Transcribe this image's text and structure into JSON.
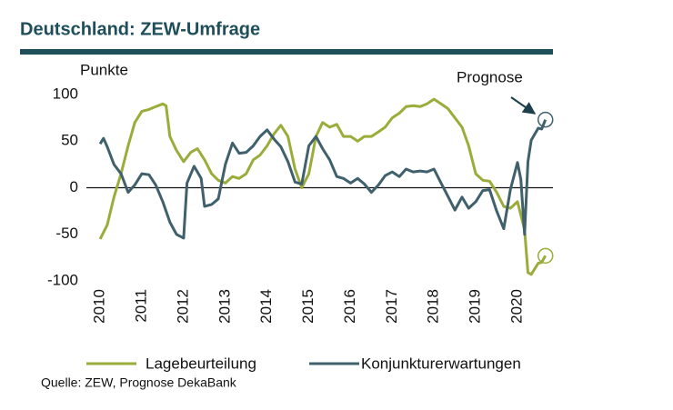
{
  "chart_data": {
    "type": "line",
    "title": "Deutschland: ZEW-Umfrage",
    "y_label": "Punkte",
    "annotation": "Prognose",
    "source": "Quelle: ZEW, Prognose DekaBank",
    "xlim": [
      2009.67,
      2020.85
    ],
    "xticks": [
      2010,
      2011,
      2012,
      2013,
      2014,
      2015,
      2016,
      2017,
      2018,
      2019,
      2020
    ],
    "ylim": [
      -100,
      100
    ],
    "yticks": [
      -100,
      -50,
      0,
      50,
      100
    ],
    "series": [
      {
        "name": "Lagebeurteilung",
        "color": "#9aad3a",
        "x": [
          2010.0,
          2010.17,
          2010.33,
          2010.5,
          2010.67,
          2010.83,
          2011.0,
          2011.17,
          2011.33,
          2011.5,
          2011.58,
          2011.67,
          2011.83,
          2012.0,
          2012.17,
          2012.33,
          2012.5,
          2012.67,
          2012.83,
          2013.0,
          2013.17,
          2013.33,
          2013.5,
          2013.67,
          2013.83,
          2014.0,
          2014.17,
          2014.33,
          2014.5,
          2014.67,
          2014.83,
          2015.0,
          2015.17,
          2015.33,
          2015.5,
          2015.67,
          2015.83,
          2016.0,
          2016.17,
          2016.33,
          2016.5,
          2016.67,
          2016.83,
          2017.0,
          2017.17,
          2017.33,
          2017.5,
          2017.67,
          2017.83,
          2018.0,
          2018.17,
          2018.33,
          2018.5,
          2018.67,
          2018.83,
          2019.0,
          2019.17,
          2019.33,
          2019.5,
          2019.67,
          2019.83,
          2020.0,
          2020.17,
          2020.25,
          2020.33,
          2020.5,
          2020.58,
          2020.67
        ],
        "values": [
          -55,
          -40,
          -10,
          15,
          45,
          70,
          82,
          84,
          87,
          90,
          88,
          55,
          40,
          28,
          38,
          42,
          30,
          15,
          8,
          5,
          12,
          10,
          15,
          30,
          35,
          45,
          58,
          67,
          55,
          20,
          0,
          15,
          55,
          70,
          65,
          68,
          55,
          55,
          50,
          55,
          55,
          60,
          65,
          75,
          80,
          87,
          88,
          87,
          90,
          95,
          90,
          85,
          75,
          65,
          45,
          15,
          8,
          7,
          -5,
          -20,
          -22,
          -15,
          -45,
          -91,
          -93,
          -81,
          -80,
          -73
        ]
      },
      {
        "name": "Konjunkturerwartungen",
        "color": "#40606c",
        "x": [
          2010.0,
          2010.08,
          2010.17,
          2010.33,
          2010.5,
          2010.67,
          2010.83,
          2011.0,
          2011.17,
          2011.33,
          2011.5,
          2011.67,
          2011.83,
          2012.0,
          2012.08,
          2012.25,
          2012.42,
          2012.5,
          2012.67,
          2012.83,
          2013.0,
          2013.17,
          2013.33,
          2013.5,
          2013.67,
          2013.83,
          2014.0,
          2014.17,
          2014.33,
          2014.5,
          2014.67,
          2014.83,
          2015.0,
          2015.17,
          2015.33,
          2015.5,
          2015.67,
          2015.83,
          2016.0,
          2016.17,
          2016.33,
          2016.5,
          2016.67,
          2016.83,
          2017.0,
          2017.17,
          2017.33,
          2017.5,
          2017.67,
          2017.83,
          2018.0,
          2018.17,
          2018.33,
          2018.5,
          2018.67,
          2018.83,
          2019.0,
          2019.17,
          2019.33,
          2019.5,
          2019.67,
          2019.83,
          2020.0,
          2020.08,
          2020.17,
          2020.25,
          2020.33,
          2020.5,
          2020.58,
          2020.67
        ],
        "values": [
          47,
          53,
          44,
          25,
          15,
          -5,
          3,
          15,
          14,
          3,
          -15,
          -37,
          -50,
          -54,
          5,
          23,
          10,
          -20,
          -18,
          -12,
          25,
          48,
          37,
          38,
          45,
          55,
          62,
          52,
          44,
          28,
          6,
          4,
          45,
          55,
          42,
          30,
          12,
          10,
          5,
          10,
          4,
          -5,
          3,
          13,
          17,
          12,
          20,
          17,
          18,
          17,
          20,
          5,
          -9,
          -24,
          -10,
          -22,
          -15,
          -3,
          -2,
          -25,
          -44,
          -2,
          27,
          9,
          -50,
          28,
          51,
          64,
          63,
          73
        ]
      }
    ]
  }
}
